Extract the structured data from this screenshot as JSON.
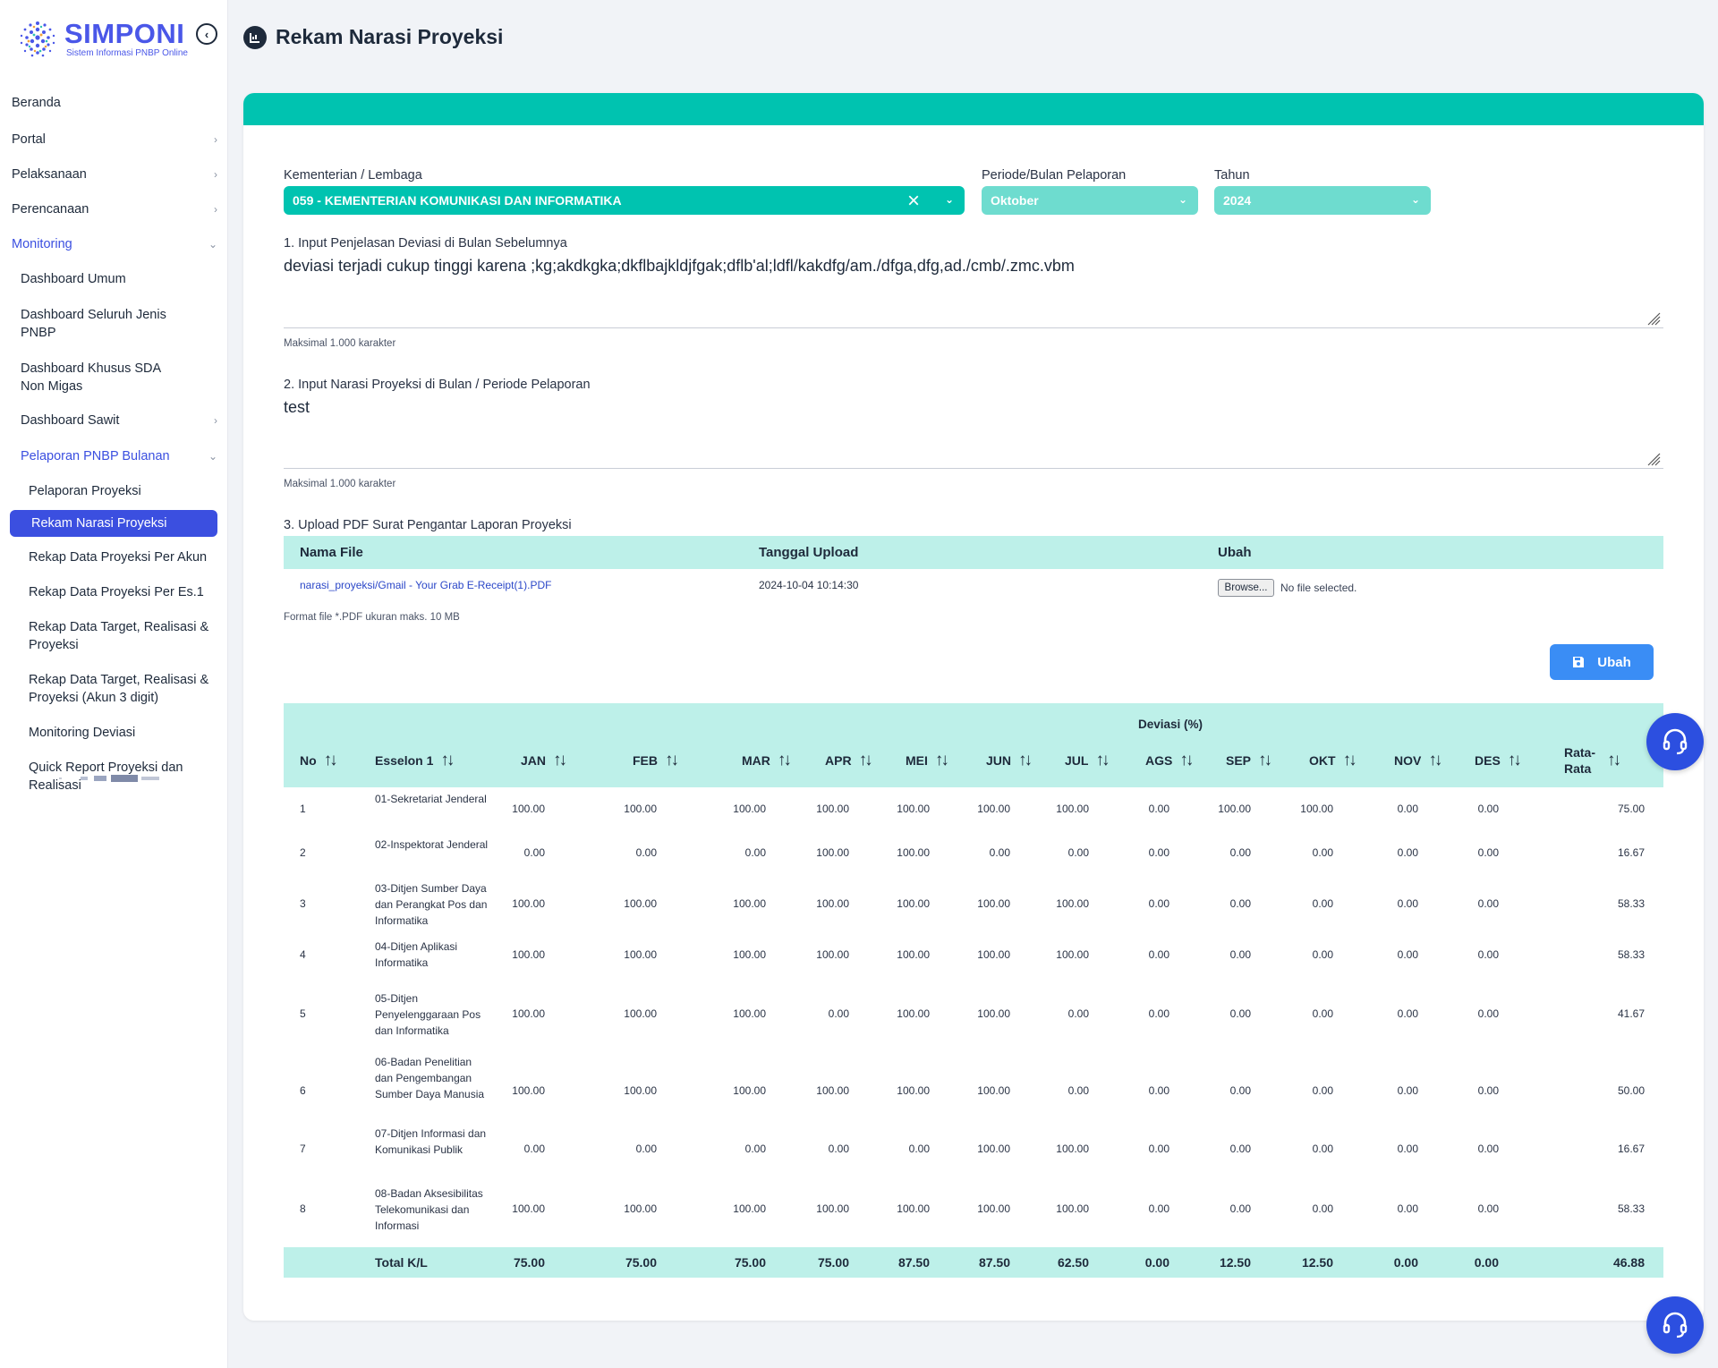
{
  "brand": {
    "title": "SIMPONI",
    "subtitle": "Sistem Informasi PNBP Online"
  },
  "sidebar": {
    "items": [
      {
        "label": "Beranda"
      },
      {
        "label": "Portal"
      },
      {
        "label": "Pelaksanaan"
      },
      {
        "label": "Perencanaan"
      },
      {
        "label": "Monitoring"
      },
      {
        "label": "Dashboard Umum"
      },
      {
        "label": "Dashboard Seluruh Jenis PNBP"
      },
      {
        "label": "Dashboard Khusus SDA Non Migas"
      },
      {
        "label": "Dashboard Sawit"
      },
      {
        "label": "Pelaporan PNBP Bulanan"
      },
      {
        "label": "Pelaporan Proyeksi"
      },
      {
        "label": "Rekam Narasi Proyeksi"
      },
      {
        "label": "Rekap Data Proyeksi Per Akun"
      },
      {
        "label": "Rekap Data Proyeksi Per Es.1"
      },
      {
        "label": "Rekap Data Target, Realisasi & Proyeksi"
      },
      {
        "label": "Rekap Data Target, Realisasi & Proyeksi (Akun 3 digit)"
      },
      {
        "label": "Monitoring Deviasi"
      },
      {
        "label": "Quick Report Proyeksi dan Realisasi"
      }
    ]
  },
  "page": {
    "title": "Rekam Narasi Proyeksi"
  },
  "form": {
    "kementerian_label": "Kementerian / Lembaga",
    "kementerian_value": "059 - KEMENTERIAN KOMUNIKASI DAN INFORMATIKA",
    "periode_label": "Periode/Bulan Pelaporan",
    "periode_value": "Oktober",
    "tahun_label": "Tahun",
    "tahun_value": "2024",
    "q1_label": "1. Input Penjelasan Deviasi di Bulan Sebelumnya",
    "q1_value": "deviasi terjadi cukup tinggi karena ;kg;akdkgka;dkflbajkldjfgak;dflb'al;ldfl/kakdfg/am./dfga,dfg,ad./cmb/.zmc.vbm",
    "q1_hint": "Maksimal 1.000 karakter",
    "q2_label": "2. Input Narasi Proyeksi di Bulan / Periode Pelaporan",
    "q2_value": "test",
    "q2_hint": "Maksimal 1.000 karakter",
    "q3_label": "3. Upload PDF Surat Pengantar Laporan Proyeksi",
    "upload_headers": {
      "file": "Nama File",
      "date": "Tanggal Upload",
      "change": "Ubah"
    },
    "upload_file": "narasi_proyeksi/Gmail - Your Grab E-Receipt(1).PDF",
    "upload_date": "2024-10-04 10:14:30",
    "browse_label": "Browse...",
    "no_file": "No file selected.",
    "upload_hint": "Format file *.PDF ukuran maks. 10 MB",
    "submit_label": "Ubah"
  },
  "table": {
    "group_header": "Deviasi (%)",
    "columns": [
      "No",
      "Esselon 1",
      "JAN",
      "FEB",
      "MAR",
      "APR",
      "MEI",
      "JUN",
      "JUL",
      "AGS",
      "SEP",
      "OKT",
      "NOV",
      "DES",
      "Rata-Rata"
    ],
    "rows": [
      {
        "no": "1",
        "name": "01-Sekretariat Jenderal",
        "values": [
          "100.00",
          "100.00",
          "100.00",
          "100.00",
          "100.00",
          "100.00",
          "100.00",
          "0.00",
          "100.00",
          "100.00",
          "0.00",
          "0.00",
          "75.00"
        ]
      },
      {
        "no": "2",
        "name": "02-Inspektorat Jenderal",
        "values": [
          "0.00",
          "0.00",
          "0.00",
          "100.00",
          "100.00",
          "0.00",
          "0.00",
          "0.00",
          "0.00",
          "0.00",
          "0.00",
          "0.00",
          "16.67"
        ]
      },
      {
        "no": "3",
        "name": "03-Ditjen Sumber Daya dan Perangkat Pos dan Informatika",
        "values": [
          "100.00",
          "100.00",
          "100.00",
          "100.00",
          "100.00",
          "100.00",
          "100.00",
          "0.00",
          "0.00",
          "0.00",
          "0.00",
          "0.00",
          "58.33"
        ]
      },
      {
        "no": "4",
        "name": "04-Ditjen Aplikasi Informatika",
        "values": [
          "100.00",
          "100.00",
          "100.00",
          "100.00",
          "100.00",
          "100.00",
          "100.00",
          "0.00",
          "0.00",
          "0.00",
          "0.00",
          "0.00",
          "58.33"
        ]
      },
      {
        "no": "5",
        "name": "05-Ditjen Penyelenggaraan Pos dan Informatika",
        "values": [
          "100.00",
          "100.00",
          "100.00",
          "0.00",
          "100.00",
          "100.00",
          "0.00",
          "0.00",
          "0.00",
          "0.00",
          "0.00",
          "0.00",
          "41.67"
        ]
      },
      {
        "no": "6",
        "name": "06-Badan Penelitian dan Pengembangan Sumber Daya Manusia",
        "values": [
          "100.00",
          "100.00",
          "100.00",
          "100.00",
          "100.00",
          "100.00",
          "0.00",
          "0.00",
          "0.00",
          "0.00",
          "0.00",
          "0.00",
          "50.00"
        ]
      },
      {
        "no": "7",
        "name": "07-Ditjen Informasi dan Komunikasi Publik",
        "values": [
          "0.00",
          "0.00",
          "0.00",
          "0.00",
          "0.00",
          "100.00",
          "100.00",
          "0.00",
          "0.00",
          "0.00",
          "0.00",
          "0.00",
          "16.67"
        ]
      },
      {
        "no": "8",
        "name": "08-Badan Aksesibilitas Telekomunikasi dan Informasi",
        "values": [
          "100.00",
          "100.00",
          "100.00",
          "100.00",
          "100.00",
          "100.00",
          "100.00",
          "0.00",
          "0.00",
          "0.00",
          "0.00",
          "0.00",
          "58.33"
        ]
      }
    ],
    "total": {
      "label": "Total K/L",
      "values": [
        "75.00",
        "75.00",
        "75.00",
        "75.00",
        "87.50",
        "87.50",
        "62.50",
        "0.00",
        "12.50",
        "12.50",
        "0.00",
        "0.00",
        "46.88"
      ]
    }
  },
  "colors": {
    "accent": "#00c3b0",
    "primary": "#3b4fe0",
    "table_header": "#bdf0e9"
  },
  "icons": {
    "collapse": "chevron-left-circle-icon",
    "help": "headset-icon",
    "save": "floppy-disk-icon",
    "sort": "sort-arrows-icon"
  }
}
